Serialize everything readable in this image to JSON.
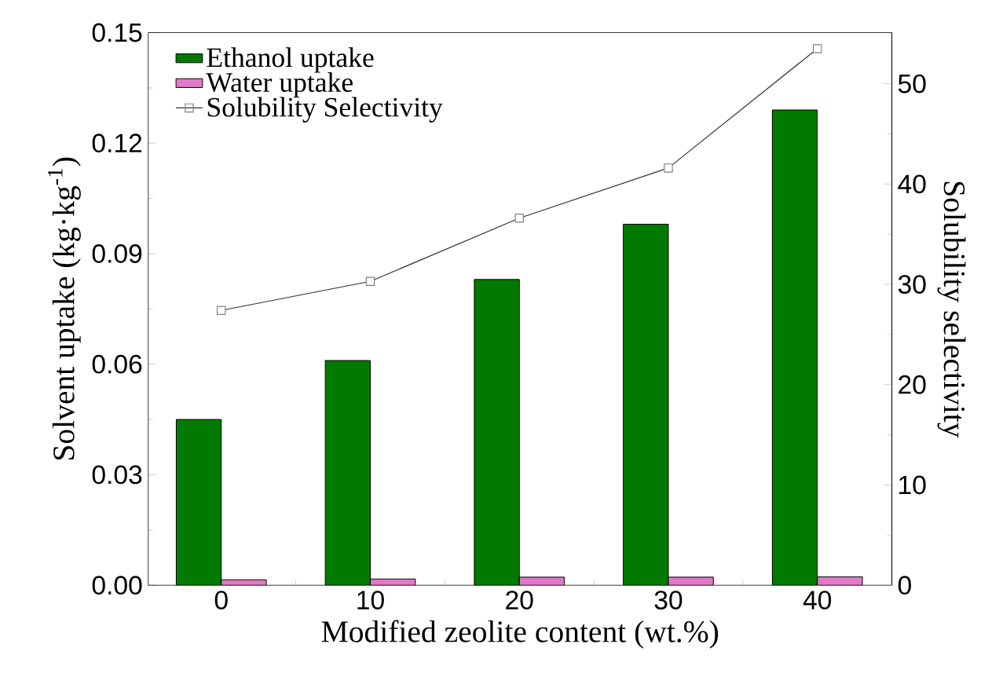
{
  "chart_data": {
    "type": "bar",
    "xlabel": "Modified zeolite content (wt.%)",
    "ylabel": "Solvent uptake (kg·kg$^{-1}$)",
    "y2label": "Solubility selectivity",
    "categories": [
      "0",
      "10",
      "20",
      "30",
      "40"
    ],
    "series": [
      {
        "name": "Ethanol uptake",
        "color": "#007a00",
        "values": [
          0.045,
          0.061,
          0.083,
          0.098,
          0.129
        ]
      },
      {
        "name": "Water uptake",
        "color": "#e07ac8",
        "values": [
          0.0015,
          0.0017,
          0.0022,
          0.0022,
          0.0023
        ]
      },
      {
        "name": "Solubility Selectivity",
        "type": "line",
        "axis": "y2",
        "color": "#333333",
        "marker": "square",
        "values": [
          27.4,
          30.3,
          36.6,
          41.6,
          53.5
        ]
      }
    ],
    "ylim": [
      0,
      0.15
    ],
    "yticks": [
      {
        "value": 0,
        "label": "0.00"
      },
      {
        "value": 0.03,
        "label": "0.03"
      },
      {
        "value": 0.06,
        "label": "0.06"
      },
      {
        "value": 0.09,
        "label": "0.09"
      },
      {
        "value": 0.12,
        "label": "0.12"
      },
      {
        "value": 0.15,
        "label": "0.15"
      }
    ],
    "y2lim": [
      0,
      55.1
    ],
    "y2ticks": [
      0,
      10,
      20,
      30,
      40,
      50
    ],
    "legend": "top left"
  }
}
